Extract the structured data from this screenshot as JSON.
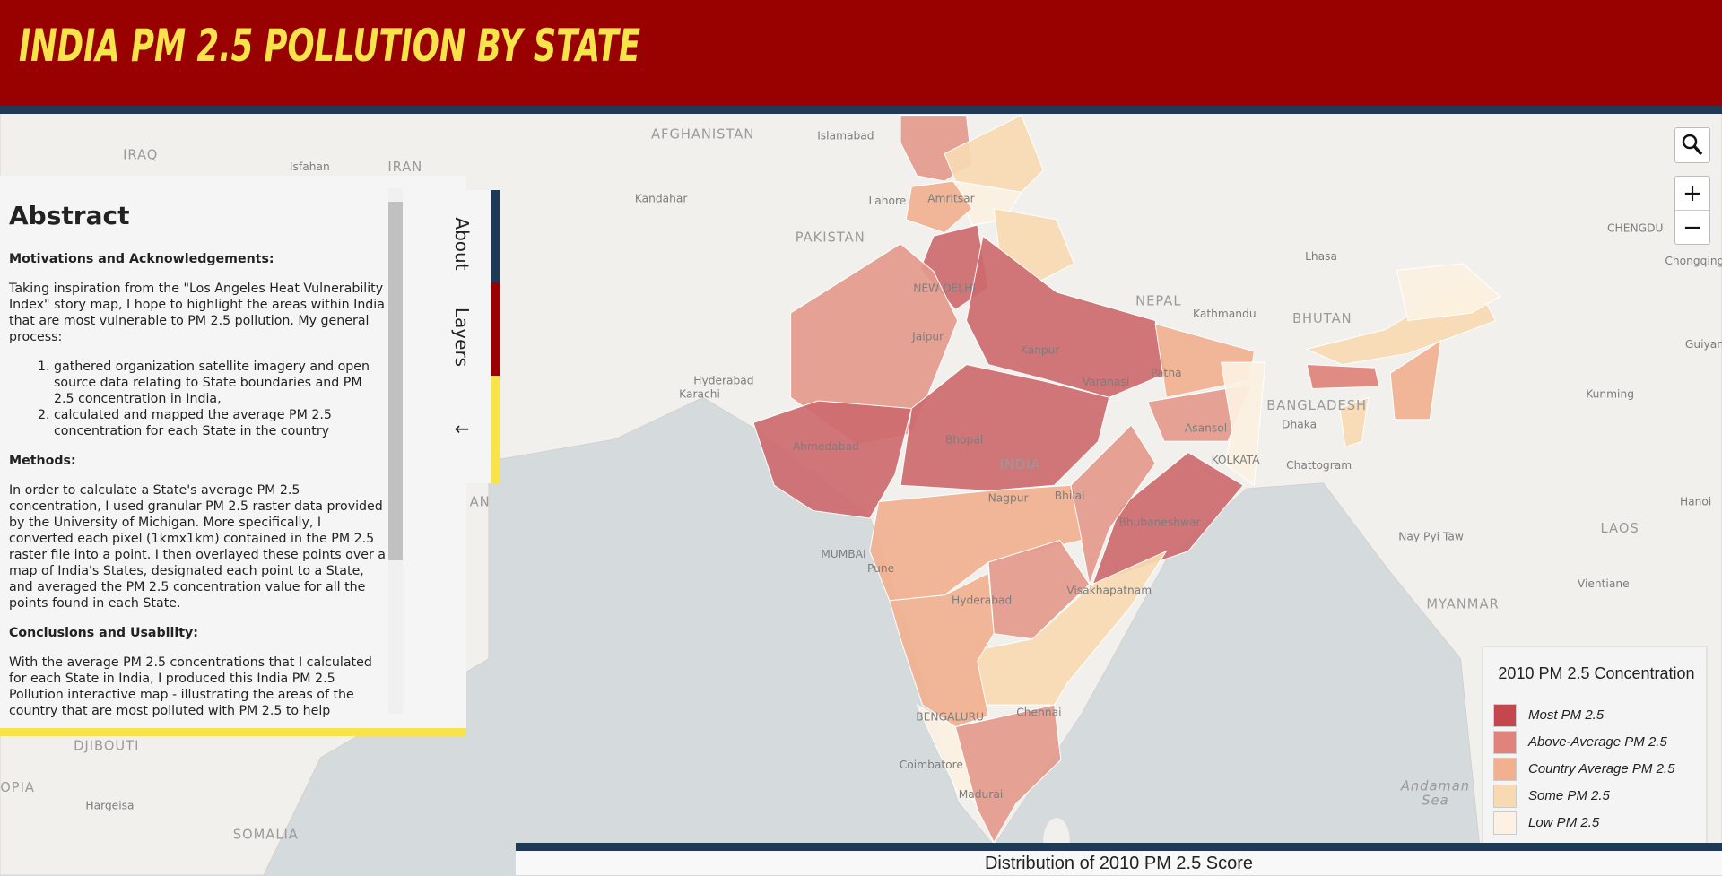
{
  "header": {
    "title": "INDIA PM 2.5 POLLUTION BY STATE"
  },
  "panel": {
    "heading": "Abstract",
    "motivations_heading": "Motivations and Acknowledgements:",
    "motivations_text": "Taking inspiration from the \"Los Angeles Heat Vulnerability Index\" story map, I hope to highlight the areas within India that are most vulnerable to PM 2.5 pollution. My general process:",
    "steps": [
      "gathered organization satellite imagery and open source data relating to State boundaries and PM 2.5 concentration in India,",
      "calculated and mapped the average PM 2.5 concentration for each State in the country"
    ],
    "methods_heading": "Methods:",
    "methods_text": "In order to calculate a State's average PM 2.5 concentration, I used granular PM 2.5 raster data provided by the University of Michigan. More specifically, I converted each pixel (1kmx1km) contained in the PM 2.5 raster file into a point. I then overlayed these points over a map of India's States, designated each point to a State, and averaged the PM 2.5 concentration value for all the points found in each State.",
    "conclusions_heading": "Conclusions and Usability:",
    "conclusions_text": "With the average PM 2.5 concentrations that I calculated for each State in India, I produced this India PM 2.5 Pollution interactive map - illustrating the areas of the country that are most polluted with PM 2.5 to help"
  },
  "tabs": [
    "About",
    "Layers",
    "←"
  ],
  "controls": {
    "zoom_in": "+",
    "zoom_out": "−"
  },
  "legend": {
    "title": "2010 PM 2.5 Concentration",
    "items": [
      {
        "label": "Most PM 2.5",
        "color": "#c4474e"
      },
      {
        "label": "Above-Average PM 2.5",
        "color": "#e0837a"
      },
      {
        "label": "Country Average PM 2.5",
        "color": "#f1b08f"
      },
      {
        "label": "Some PM 2.5",
        "color": "#f7dab2"
      },
      {
        "label": "Low PM 2.5",
        "color": "#fcf1e2"
      }
    ]
  },
  "bottom_panel": {
    "title": "Distribution of 2010 PM 2.5 Score"
  },
  "map_labels": [
    "AFGHANISTAN",
    "Islamabad",
    "IRAQ",
    "Isfahan",
    "IRAN",
    "Kandahar",
    "Lahore",
    "Amritsar",
    "PAKISTAN",
    "NEW DELHI",
    "Jaipur",
    "NEPAL",
    "Kathmandu",
    "BHUTAN",
    "Lhasa",
    "CHENGDU",
    "Chongqing",
    "Guiyan",
    "Kanpur",
    "Varanasi",
    "Patna",
    "Hyderabad",
    "Karachi",
    "BANGLADESH",
    "Dhaka",
    "Kunming",
    "Asansol",
    "Ahmedabad",
    "Bhopal",
    "INDIA",
    "KOLKATA",
    "Chattogram",
    "Nagpur",
    "Bhilai",
    "Hanoi",
    "Bhubaneshwar",
    "Nay Pyi Taw",
    "LAOS",
    "MUMBAI",
    "Pune",
    "Visakhapatnam",
    "Vientiane",
    "Hyderabad",
    "MYANMAR",
    "BENGALURU",
    "Chennai",
    "DJIBOUTI",
    "OPIA",
    "Hargeisa",
    "SOMALIA",
    "Coimbatore",
    "Madurai",
    "Andaman",
    "Sea",
    "AN"
  ]
}
